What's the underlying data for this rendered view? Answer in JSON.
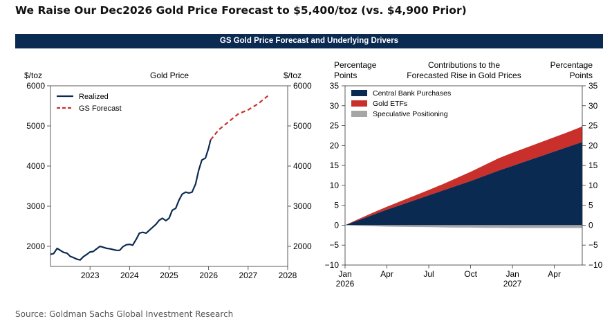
{
  "headline": "We Raise Our Dec2026 Gold Price Forecast to $5,400/toz (vs. $4,900 Prior)",
  "banner": "GS Gold Price Forecast and Underlying Drivers",
  "source": "Source: Goldman Sachs Global Investment Research",
  "colors": {
    "banner": "#0b2a52",
    "realized": "#0b2a52",
    "forecast": "#c9302c",
    "central_bank": "#0b2a52",
    "gold_etfs": "#c9302c",
    "speculative": "#a6a6a6"
  },
  "chart_data": [
    {
      "type": "line",
      "title": "Gold Price",
      "ylabel_left": "$/toz",
      "ylabel_right": "$/toz",
      "xlim": [
        2022,
        2028
      ],
      "ylim": [
        1500,
        6000
      ],
      "yticks": [
        2000,
        3000,
        4000,
        5000,
        6000
      ],
      "ytick_labels": [
        "2000",
        "3000",
        "4000",
        "5000",
        "6000"
      ],
      "xticks": [
        2023,
        2024,
        2025,
        2026,
        2027,
        2028
      ],
      "xtick_labels": [
        "2023",
        "2024",
        "2025",
        "2026",
        "2027",
        "2028"
      ],
      "legend": "top-left",
      "series": [
        {
          "name": "Realized",
          "style": "solid",
          "points": [
            [
              2022.0,
              1800
            ],
            [
              2022.08,
              1820
            ],
            [
              2022.17,
              1950
            ],
            [
              2022.25,
              1900
            ],
            [
              2022.33,
              1850
            ],
            [
              2022.42,
              1830
            ],
            [
              2022.5,
              1750
            ],
            [
              2022.58,
              1720
            ],
            [
              2022.67,
              1680
            ],
            [
              2022.75,
              1660
            ],
            [
              2022.83,
              1740
            ],
            [
              2022.92,
              1800
            ],
            [
              2023.0,
              1860
            ],
            [
              2023.08,
              1870
            ],
            [
              2023.17,
              1940
            ],
            [
              2023.25,
              2000
            ],
            [
              2023.33,
              1980
            ],
            [
              2023.42,
              1950
            ],
            [
              2023.5,
              1940
            ],
            [
              2023.58,
              1920
            ],
            [
              2023.67,
              1900
            ],
            [
              2023.75,
              1900
            ],
            [
              2023.83,
              1990
            ],
            [
              2023.92,
              2040
            ],
            [
              2024.0,
              2050
            ],
            [
              2024.08,
              2030
            ],
            [
              2024.17,
              2180
            ],
            [
              2024.25,
              2330
            ],
            [
              2024.33,
              2350
            ],
            [
              2024.42,
              2330
            ],
            [
              2024.5,
              2400
            ],
            [
              2024.58,
              2470
            ],
            [
              2024.67,
              2550
            ],
            [
              2024.75,
              2650
            ],
            [
              2024.83,
              2700
            ],
            [
              2024.92,
              2640
            ],
            [
              2025.0,
              2700
            ],
            [
              2025.08,
              2900
            ],
            [
              2025.17,
              2950
            ],
            [
              2025.25,
              3150
            ],
            [
              2025.33,
              3300
            ],
            [
              2025.42,
              3350
            ],
            [
              2025.5,
              3330
            ],
            [
              2025.58,
              3350
            ],
            [
              2025.67,
              3550
            ],
            [
              2025.75,
              3900
            ],
            [
              2025.83,
              4150
            ],
            [
              2025.92,
              4200
            ],
            [
              2026.0,
              4450
            ],
            [
              2026.05,
              4650
            ]
          ]
        },
        {
          "name": "GS Forecast",
          "style": "dashed",
          "points": [
            [
              2026.05,
              4650
            ],
            [
              2026.25,
              4900
            ],
            [
              2026.5,
              5100
            ],
            [
              2026.75,
              5300
            ],
            [
              2027.0,
              5400
            ],
            [
              2027.25,
              5550
            ],
            [
              2027.5,
              5750
            ]
          ]
        }
      ]
    },
    {
      "type": "area",
      "stacked": true,
      "title": "Contributions to the Forecasted Rise in Gold Prices",
      "ylabel_left": "Percentage Points",
      "ylabel_right": "Percentage Points",
      "ylim": [
        -10,
        35
      ],
      "yticks": [
        -10,
        -5,
        0,
        5,
        10,
        15,
        20,
        25,
        30,
        35
      ],
      "ytick_labels": [
        "−10",
        "−5",
        "0",
        "5",
        "10",
        "15",
        "20",
        "25",
        "30",
        "35"
      ],
      "x": [
        "Jan 2026",
        "Feb 2026",
        "Mar 2026",
        "Apr 2026",
        "May 2026",
        "Jun 2026",
        "Jul 2026",
        "Aug 2026",
        "Sep 2026",
        "Oct 2026",
        "Nov 2026",
        "Dec 2026",
        "Jan 2027",
        "Feb 2027",
        "Mar 2027",
        "Apr 2027",
        "May 2027",
        "Jun 2027"
      ],
      "xtick_labels": [
        {
          "index": 0,
          "line1": "Jan",
          "line2": "2026"
        },
        {
          "index": 3,
          "line1": "Apr",
          "line2": ""
        },
        {
          "index": 6,
          "line1": "Jul",
          "line2": ""
        },
        {
          "index": 9,
          "line1": "Oct",
          "line2": ""
        },
        {
          "index": 12,
          "line1": "Jan",
          "line2": "2027"
        },
        {
          "index": 15,
          "line1": "Apr",
          "line2": ""
        }
      ],
      "legend": "top-left",
      "series": [
        {
          "name": "Central Bank Purchases",
          "values": [
            0,
            1.3,
            2.6,
            3.9,
            5.1,
            6.3,
            7.5,
            8.7,
            9.9,
            11.1,
            12.4,
            13.7,
            14.9,
            16.1,
            17.3,
            18.5,
            19.7,
            20.9
          ]
        },
        {
          "name": "Gold ETFs",
          "values": [
            0,
            0.3,
            0.55,
            0.75,
            0.95,
            1.15,
            1.35,
            1.6,
            1.95,
            2.3,
            2.7,
            3.1,
            3.3,
            3.4,
            3.5,
            3.6,
            3.7,
            3.9
          ]
        },
        {
          "name": "Speculative Positioning",
          "values": [
            0,
            -0.15,
            -0.25,
            -0.35,
            -0.4,
            -0.45,
            -0.5,
            -0.55,
            -0.6,
            -0.6,
            -0.65,
            -0.65,
            -0.7,
            -0.7,
            -0.7,
            -0.7,
            -0.7,
            -0.7
          ]
        }
      ]
    }
  ]
}
